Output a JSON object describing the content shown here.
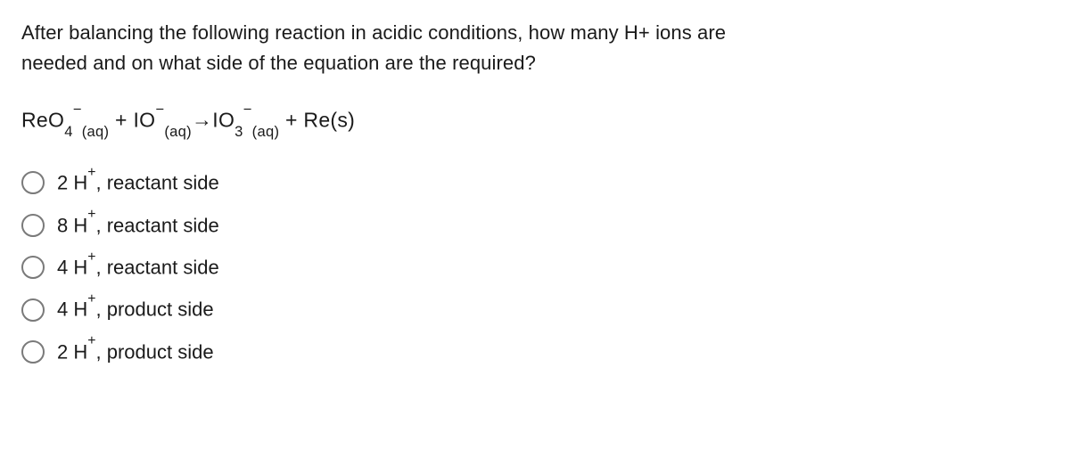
{
  "question": {
    "line1": "After balancing the following reaction in acidic conditions, how many H+ ions are",
    "line2": "needed and on what side of the equation are the required?"
  },
  "equation": {
    "r1_base": "ReO",
    "r1_sub": "4",
    "r1_sup": "−",
    "r1_state": "(aq)",
    "plus1": " + ",
    "r2_base": "IO",
    "r2_sup": "−",
    "r2_state": "(aq)",
    "arrow": " → ",
    "p1_base": "IO",
    "p1_sub": "3",
    "p1_sup": "−",
    "p1_state": "(aq)",
    "plus2": " + ",
    "p2": "Re(s)"
  },
  "options": [
    {
      "prefix": "2 H",
      "sup": "+",
      "suffix": ", reactant side"
    },
    {
      "prefix": "8 H",
      "sup": "+",
      "suffix": ", reactant side"
    },
    {
      "prefix": "4 H",
      "sup": "+",
      "suffix": ", reactant side"
    },
    {
      "prefix": "4 H",
      "sup": "+",
      "suffix": ", product side"
    },
    {
      "prefix": "2 H",
      "sup": "+",
      "suffix": ", product side"
    }
  ]
}
